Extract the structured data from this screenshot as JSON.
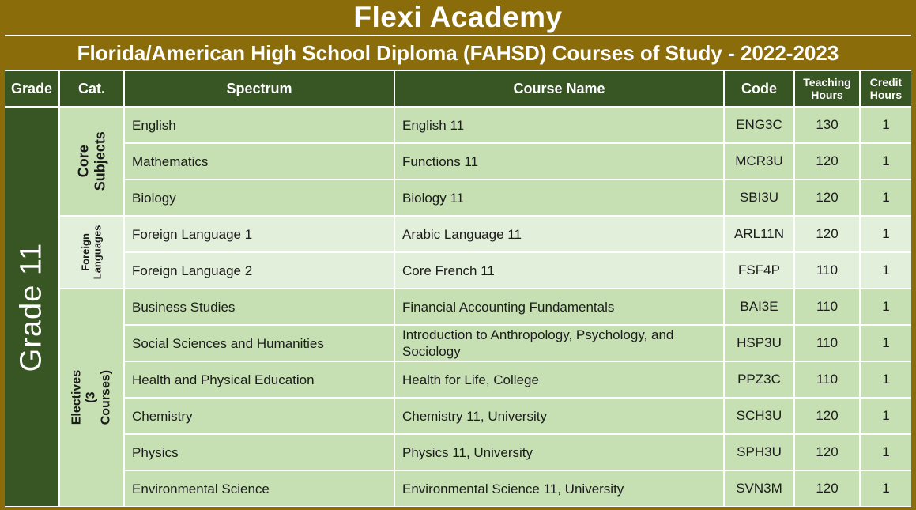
{
  "page": {
    "title": "Flexi Academy",
    "subtitle": "Florida/American High School Diploma (FAHSD) Courses of Study - 2022-2023"
  },
  "colors": {
    "gold": "#8a6d0a",
    "dark_green": "#375623",
    "row_green": "#c6e0b4",
    "row_green_light": "#e2efda",
    "header_text": "#ffffff",
    "body_text": "#1c1c1c"
  },
  "table": {
    "headers": {
      "grade": "Grade",
      "cat": "Cat.",
      "spectrum": "Spectrum",
      "course_name": "Course Name",
      "code": "Code",
      "teaching_hours": "Teaching Hours",
      "credit_hours": "Credit Hours"
    },
    "grade_label": "Grade 11",
    "groups": [
      {
        "category": "Core Subjects",
        "shade": "a",
        "rows": [
          {
            "spectrum": "English",
            "course_name": "English 11",
            "code": "ENG3C",
            "teaching_hours": "130",
            "credit_hours": "1"
          },
          {
            "spectrum": "Mathematics",
            "course_name": "Functions 11",
            "code": "MCR3U",
            "teaching_hours": "120",
            "credit_hours": "1"
          },
          {
            "spectrum": "Biology",
            "course_name": "Biology 11",
            "code": "SBI3U",
            "teaching_hours": "120",
            "credit_hours": "1"
          }
        ]
      },
      {
        "category": "Foreign\nLanguages",
        "shade": "b",
        "rows": [
          {
            "spectrum": "Foreign Language 1",
            "course_name": "Arabic Language 11",
            "code": "ARL11N",
            "teaching_hours": "120",
            "credit_hours": "1"
          },
          {
            "spectrum": "Foreign Language 2",
            "course_name": "Core French 11",
            "code": "FSF4P",
            "teaching_hours": "110",
            "credit_hours": "1"
          }
        ]
      },
      {
        "category": "Electives\n(3 Courses)",
        "shade": "a",
        "rows": [
          {
            "spectrum": "Business Studies",
            "course_name": "Financial Accounting Fundamentals",
            "code": "BAI3E",
            "teaching_hours": "110",
            "credit_hours": "1"
          },
          {
            "spectrum": "Social Sciences and Humanities",
            "course_name": "Introduction to Anthropology, Psychology, and Sociology",
            "code": "HSP3U",
            "teaching_hours": "110",
            "credit_hours": "1"
          },
          {
            "spectrum": "Health and Physical Education",
            "course_name": "Health for Life, College",
            "code": "PPZ3C",
            "teaching_hours": "110",
            "credit_hours": "1"
          },
          {
            "spectrum": "Chemistry",
            "course_name": "Chemistry 11, University",
            "code": "SCH3U",
            "teaching_hours": "120",
            "credit_hours": "1"
          },
          {
            "spectrum": "Physics",
            "course_name": "Physics 11, University",
            "code": "SPH3U",
            "teaching_hours": "120",
            "credit_hours": "1"
          },
          {
            "spectrum": "Environmental Science",
            "course_name": "Environmental Science 11, University",
            "code": "SVN3M",
            "teaching_hours": "120",
            "credit_hours": "1"
          }
        ]
      }
    ]
  }
}
